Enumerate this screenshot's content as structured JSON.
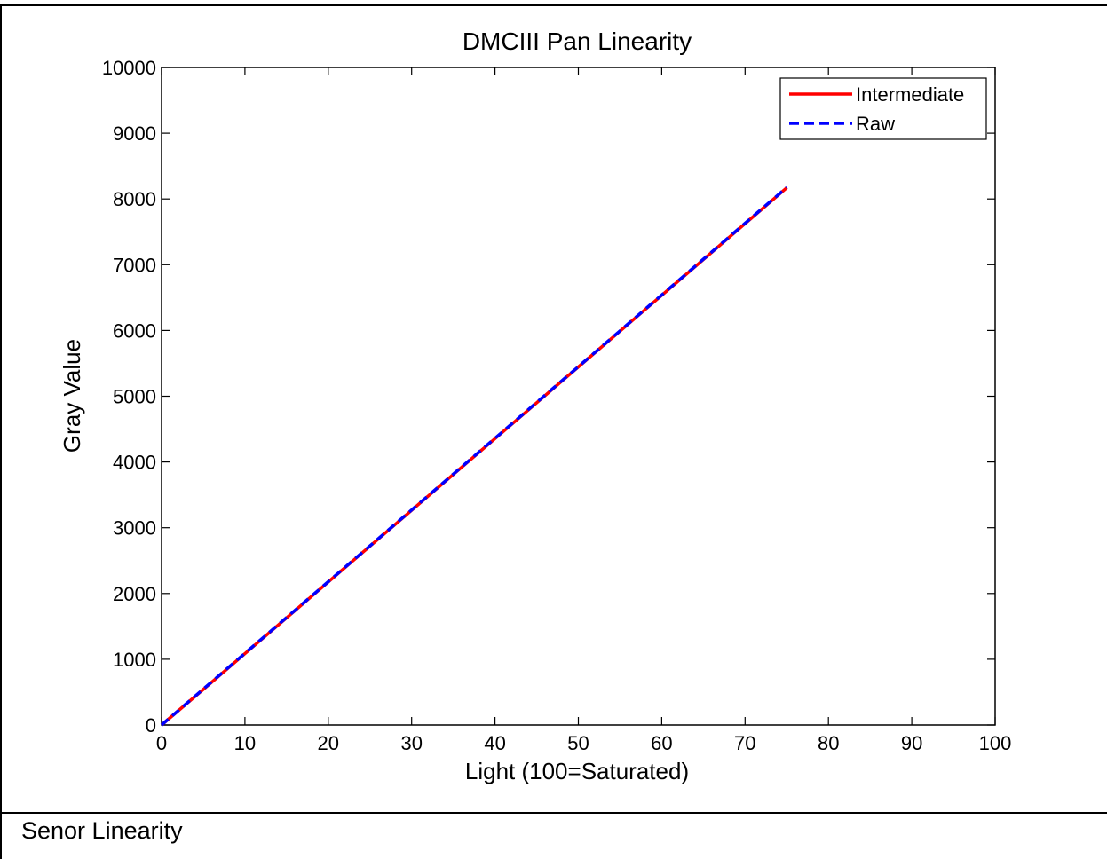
{
  "caption": "Senor Linearity",
  "chart_data": {
    "type": "line",
    "title": "DMCIII Pan Linearity",
    "xlabel": "Light (100=Saturated)",
    "ylabel": "Gray Value",
    "xlim": [
      0,
      100
    ],
    "ylim": [
      0,
      10000
    ],
    "xticks": [
      0,
      10,
      20,
      30,
      40,
      50,
      60,
      70,
      80,
      90,
      100
    ],
    "yticks": [
      0,
      1000,
      2000,
      3000,
      4000,
      5000,
      6000,
      7000,
      8000,
      9000,
      10000
    ],
    "grid": false,
    "legend_position": "top-right",
    "series": [
      {
        "name": "Intermediate",
        "color": "#ff0000",
        "style": "solid",
        "x": [
          0,
          5,
          10,
          15,
          20,
          25,
          30,
          35,
          40,
          45,
          50,
          55,
          60,
          65,
          70,
          75
        ],
        "y": [
          0,
          540,
          1085,
          1630,
          2175,
          2720,
          3265,
          3810,
          4355,
          4900,
          5445,
          5990,
          6535,
          7080,
          7625,
          8170
        ]
      },
      {
        "name": "Raw",
        "color": "#0000ff",
        "style": "dashed",
        "x": [
          0,
          5,
          10,
          15,
          20,
          25,
          30,
          35,
          40,
          45,
          50,
          55,
          60,
          65,
          70,
          75
        ],
        "y": [
          0,
          545,
          1090,
          1635,
          2180,
          2725,
          3270,
          3815,
          4360,
          4905,
          5450,
          5995,
          6540,
          7085,
          7630,
          8175
        ]
      }
    ]
  }
}
